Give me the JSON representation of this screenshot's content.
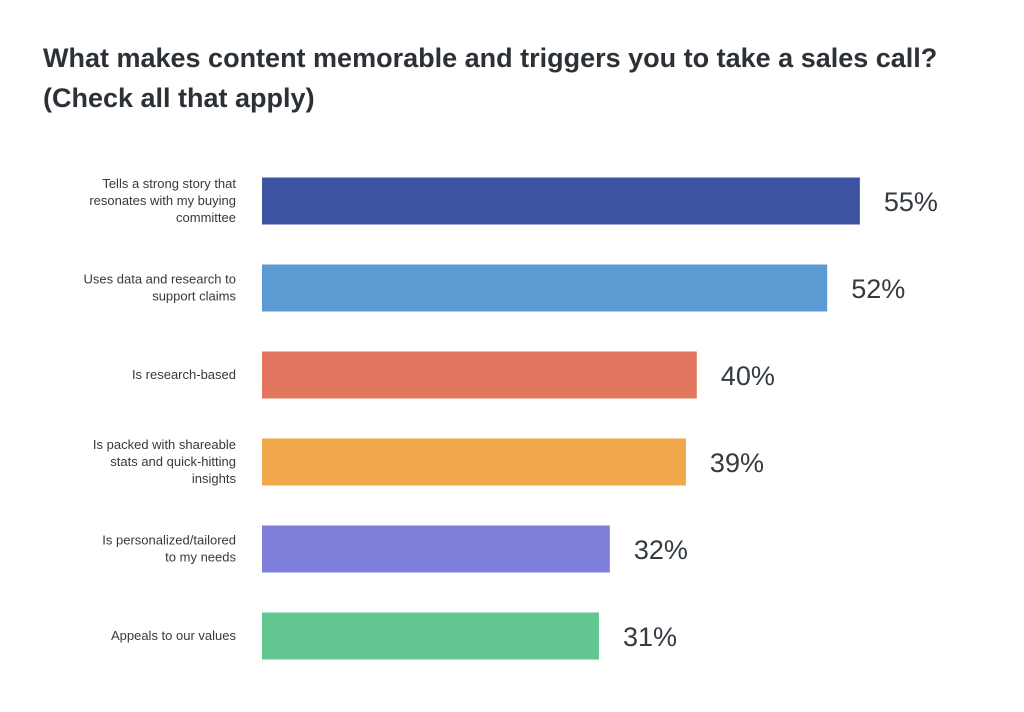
{
  "chart_data": {
    "type": "bar",
    "orientation": "horizontal",
    "title": "What makes content memorable and triggers you to take a sales call? (Check all that apply)",
    "categories": [
      "Tells a strong story that resonates with my buying committee",
      "Uses data and research to support claims",
      "Is research-based",
      "Is packed with shareable stats and quick-hitting insights",
      "Is personalized/tailored to my needs",
      "Appeals to our values"
    ],
    "category_lines": [
      [
        "Tells a strong story that",
        "resonates with my buying",
        "committee"
      ],
      [
        "Uses data and research to",
        "support claims"
      ],
      [
        "Is research-based"
      ],
      [
        "Is packed with shareable",
        "stats and quick-hitting",
        "insights"
      ],
      [
        "Is personalized/tailored",
        "to my needs"
      ],
      [
        "Appeals to our values"
      ]
    ],
    "values": [
      55,
      52,
      40,
      39,
      32,
      31
    ],
    "value_labels": [
      "55%",
      "52%",
      "40%",
      "39%",
      "32%",
      "31%"
    ],
    "colors": [
      "#3d52a1",
      "#5b9bd3",
      "#e2765f",
      "#f1a84b",
      "#7f7edb",
      "#62c690"
    ],
    "xlim": [
      0,
      100
    ],
    "grid": false,
    "legend": "none"
  }
}
